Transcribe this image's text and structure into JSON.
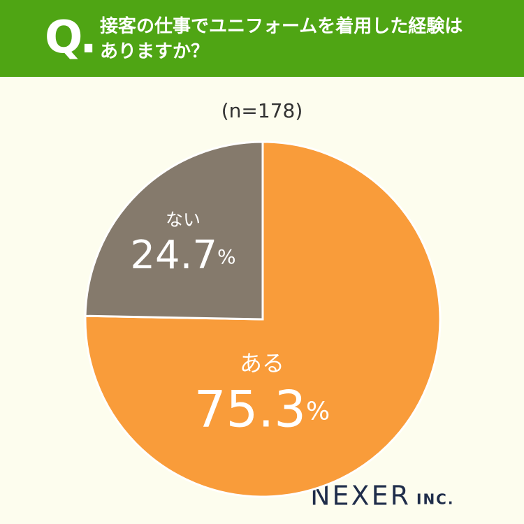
{
  "chart_data": {
    "type": "pie",
    "header_mark": "Q.",
    "title": "接客の仕事でユニフォームを着用した経験はありますか？",
    "subtitle": "(n=178)",
    "categories": [
      "ある",
      "ない"
    ],
    "values": [
      75.3,
      24.7
    ],
    "value_labels": [
      "75.3%",
      "24.7%"
    ],
    "colors": [
      "#f99c3a",
      "#857a6c"
    ],
    "logo_main": "NEXER",
    "logo_sub": "INC."
  }
}
